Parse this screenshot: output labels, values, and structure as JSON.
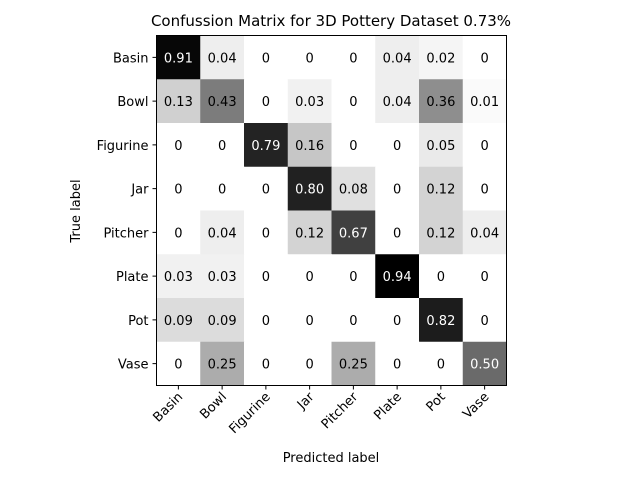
{
  "chart_data": {
    "type": "heatmap",
    "title": "Confussion Matrix for 3D Pottery Dataset 0.73%",
    "xlabel": "Predicted label",
    "ylabel": "True label",
    "x_categories": [
      "Basin",
      "Bowl",
      "Figurine",
      "Jar",
      "Pitcher",
      "Plate",
      "Pot",
      "Vase"
    ],
    "y_categories": [
      "Basin",
      "Bowl",
      "Figurine",
      "Jar",
      "Pitcher",
      "Plate",
      "Pot",
      "Vase"
    ],
    "values": [
      [
        0.91,
        0.04,
        0,
        0,
        0,
        0.04,
        0.02,
        0
      ],
      [
        0.13,
        0.43,
        0,
        0.03,
        0,
        0.04,
        0.36,
        0.01
      ],
      [
        0,
        0,
        0.79,
        0.16,
        0,
        0,
        0.05,
        0
      ],
      [
        0,
        0,
        0,
        0.8,
        0.08,
        0,
        0.12,
        0
      ],
      [
        0,
        0.04,
        0,
        0.12,
        0.67,
        0,
        0.12,
        0.04
      ],
      [
        0.03,
        0.03,
        0,
        0,
        0,
        0.94,
        0,
        0
      ],
      [
        0.09,
        0.09,
        0,
        0,
        0,
        0,
        0.82,
        0
      ],
      [
        0,
        0.25,
        0,
        0,
        0.25,
        0,
        0,
        0.5
      ]
    ],
    "labels": [
      [
        "0.91",
        "0.04",
        "0",
        "0",
        "0",
        "0.04",
        "0.02",
        "0"
      ],
      [
        "0.13",
        "0.43",
        "0",
        "0.03",
        "0",
        "0.04",
        "0.36",
        "0.01"
      ],
      [
        "0",
        "0",
        "0.79",
        "0.16",
        "0",
        "0",
        "0.05",
        "0"
      ],
      [
        "0",
        "0",
        "0",
        "0.80",
        "0.08",
        "0",
        "0.12",
        "0"
      ],
      [
        "0",
        "0.04",
        "0",
        "0.12",
        "0.67",
        "0",
        "0.12",
        "0.04"
      ],
      [
        "0.03",
        "0.03",
        "0",
        "0",
        "0",
        "0.94",
        "0",
        "0"
      ],
      [
        "0.09",
        "0.09",
        "0",
        "0",
        "0",
        "0",
        "0.82",
        "0"
      ],
      [
        "0",
        "0.25",
        "0",
        "0",
        "0.25",
        "0",
        "0",
        "0.50"
      ]
    ],
    "colormap": "greys",
    "value_range": [
      0,
      0.94
    ],
    "grid": false,
    "colors": {
      "cell_low": "#ffffff",
      "cell_high": "#000000",
      "text_dark": "#000000",
      "text_light": "#ffffff",
      "frame": "#000000"
    }
  }
}
